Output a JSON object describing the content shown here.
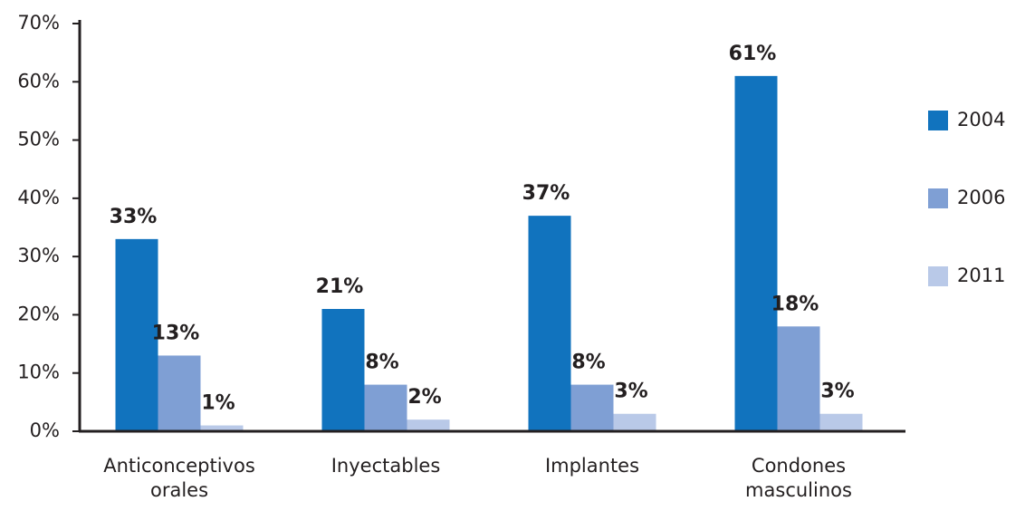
{
  "chart_data": {
    "type": "bar",
    "categories": [
      "Anticonceptivos orales",
      "Inyectables",
      "Implantes",
      "Condones masculinos"
    ],
    "series": [
      {
        "name": "2004",
        "color": "#1173be",
        "values": [
          33,
          21,
          37,
          61
        ],
        "value_labels": [
          "33%",
          "21%",
          "37%",
          "61%"
        ]
      },
      {
        "name": "2006",
        "color": "#7f9fd4",
        "values": [
          13,
          8,
          8,
          18
        ],
        "value_labels": [
          "13%",
          "8%",
          "8%",
          "18%"
        ]
      },
      {
        "name": "2011",
        "color": "#b9c9e8",
        "values": [
          1,
          2,
          3,
          3
        ],
        "value_labels": [
          "1%",
          "2%",
          "3%",
          "3%"
        ]
      }
    ],
    "ylim": [
      0,
      70
    ],
    "yticks": [
      {
        "value": 0,
        "label": "0%"
      },
      {
        "value": 10,
        "label": "10%"
      },
      {
        "value": 20,
        "label": "20%"
      },
      {
        "value": 30,
        "label": "30%"
      },
      {
        "value": 40,
        "label": "40%"
      },
      {
        "value": 50,
        "label": "50%"
      },
      {
        "value": 60,
        "label": "60%"
      },
      {
        "value": 70,
        "label": "70%"
      }
    ],
    "legend": "right"
  }
}
